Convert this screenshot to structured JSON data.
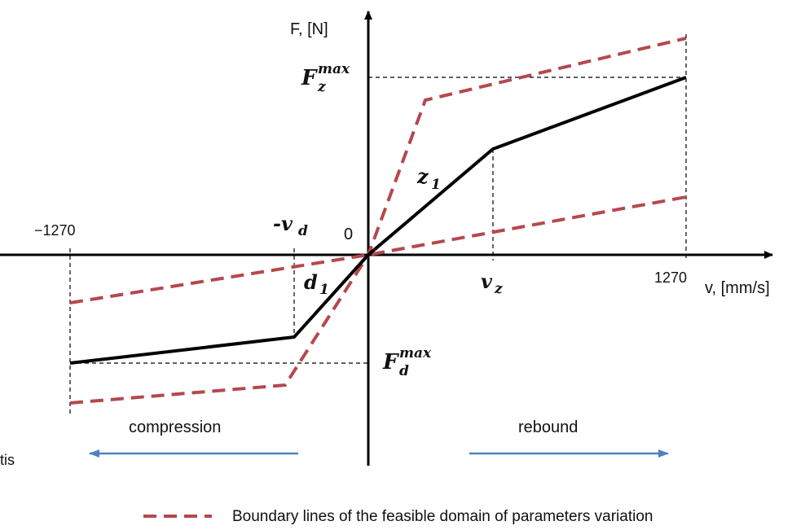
{
  "axes": {
    "y_label": "F, [N]",
    "x_label": "v, [mm/s]",
    "origin": "0",
    "x_neg": "−1270",
    "x_pos": "1270"
  },
  "symbols": {
    "fz": "F",
    "fz_sub": "z",
    "fz_sup": "max",
    "fd": "F",
    "fd_sub": "d",
    "fd_sup": "max",
    "z1": "z",
    "z1_sub": "1",
    "d1": "d",
    "d1_sub": "1",
    "vz": "v",
    "vz_sub": "z",
    "vd": "-v",
    "vd_sub": "d"
  },
  "regions": {
    "compression": "compression",
    "rebound": "rebound"
  },
  "clipped_text": "tis",
  "legend": {
    "boundary": "Boundary lines of the feasible domain of parameters variation"
  },
  "colors": {
    "curve": "#000000",
    "boundary": "#b5484e",
    "arrow": "#4f81bd"
  }
}
